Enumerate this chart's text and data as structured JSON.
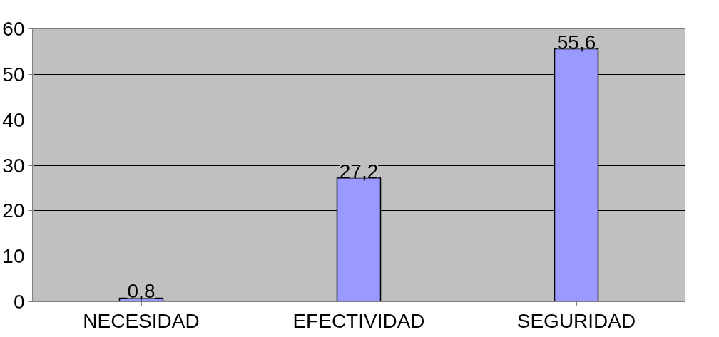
{
  "chart_data": {
    "type": "bar",
    "categories": [
      "NECESIDAD",
      "EFECTIVIDAD",
      "SEGURIDAD"
    ],
    "values": [
      0.8,
      27.2,
      55.6
    ],
    "color": "#9999ff",
    "value_labels": [
      "0,8",
      "27,2",
      "55,6"
    ],
    "ylim": [
      0,
      60
    ],
    "yticks": [
      0,
      10,
      20,
      30,
      40,
      50,
      60
    ],
    "grid": "y"
  }
}
